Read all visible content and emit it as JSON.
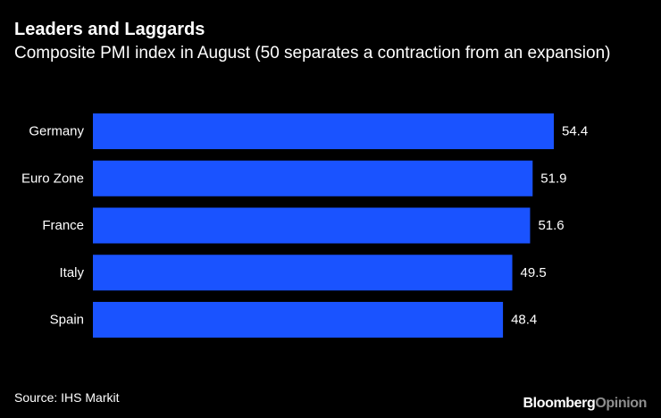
{
  "title": "Leaders and Laggards",
  "subtitle": "Composite PMI index in August (50 separates a contraction from an expansion)",
  "source": "Source: IHS Markit",
  "brand": {
    "part1": "Bloomberg",
    "part2": "Opinion",
    "part1_color": "#ffffff",
    "part2_color": "#8e8e8e"
  },
  "colors": {
    "background": "#000000",
    "bar": "#1a53ff",
    "text": "#ffffff"
  },
  "chart_data": {
    "type": "bar",
    "orientation": "horizontal",
    "categories": [
      "Germany",
      "Euro Zone",
      "France",
      "Italy",
      "Spain"
    ],
    "values": [
      54.4,
      51.9,
      51.6,
      49.5,
      48.4
    ],
    "data_labels": [
      "54.4",
      "51.9",
      "51.6",
      "49.5",
      "48.4"
    ],
    "title": "Leaders and Laggards",
    "subtitle": "Composite PMI index in August (50 separates a contraction from an expansion)",
    "xlabel": "",
    "ylabel": "",
    "xlim": [
      0,
      54.4
    ],
    "grid": false,
    "legend": "none"
  }
}
